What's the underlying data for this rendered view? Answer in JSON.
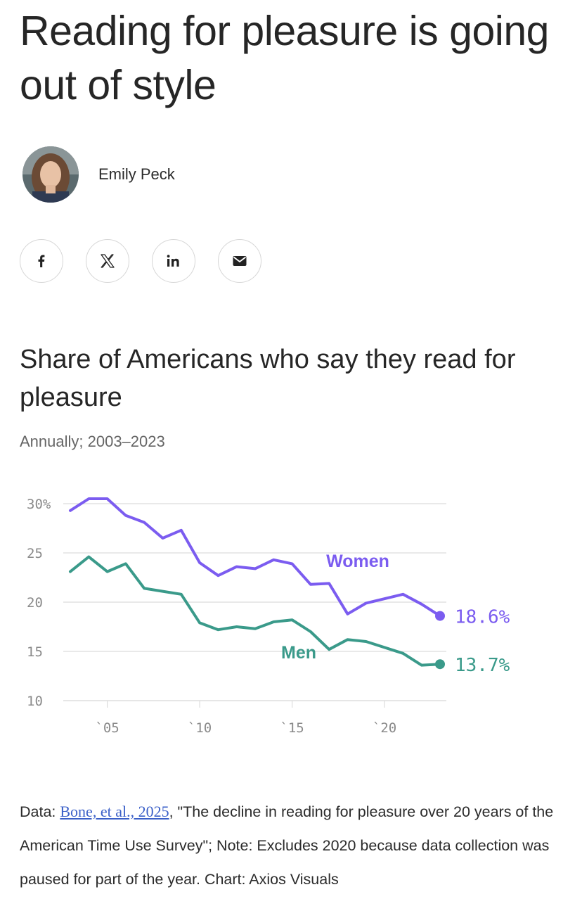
{
  "article": {
    "headline": "Reading for pleasure is going out of style",
    "author": "Emily Peck"
  },
  "share": {
    "facebook_icon": "facebook-icon",
    "x_icon": "x-icon",
    "linkedin_icon": "linkedin-icon",
    "email_icon": "email-icon"
  },
  "colors": {
    "women": "#7b5cf0",
    "men": "#3a9a8a",
    "grid": "#dcdcdc",
    "tick": "#8a8a8a"
  },
  "chart_data": {
    "type": "line",
    "title": "Share of Americans who say they read for pleasure",
    "subtitle": "Annually; 2003–2023",
    "xlabel": "",
    "ylabel": "",
    "ylim": [
      10,
      30
    ],
    "xlim": [
      2003,
      2023
    ],
    "grid": true,
    "yticks": [
      {
        "value": 30,
        "label": "30%"
      },
      {
        "value": 25,
        "label": "25"
      },
      {
        "value": 20,
        "label": "20"
      },
      {
        "value": 15,
        "label": "15"
      },
      {
        "value": 10,
        "label": "10"
      }
    ],
    "xticks": [
      {
        "value": 2005,
        "label": "`05"
      },
      {
        "value": 2010,
        "label": "`10"
      },
      {
        "value": 2015,
        "label": "`15"
      },
      {
        "value": 2020,
        "label": "`20"
      }
    ],
    "x": [
      2003,
      2004,
      2005,
      2006,
      2007,
      2008,
      2009,
      2010,
      2011,
      2012,
      2013,
      2014,
      2015,
      2016,
      2017,
      2018,
      2019,
      2021,
      2022,
      2023
    ],
    "series": [
      {
        "name": "Women",
        "values": [
          29.3,
          30.5,
          30.5,
          28.8,
          28.1,
          26.5,
          27.3,
          24.0,
          22.7,
          23.6,
          23.4,
          24.3,
          23.9,
          21.8,
          21.9,
          18.8,
          19.9,
          20.8,
          19.8,
          18.6
        ],
        "end_label": "18.6%"
      },
      {
        "name": "Men",
        "values": [
          23.1,
          24.6,
          23.1,
          23.9,
          21.4,
          21.1,
          20.8,
          17.9,
          17.2,
          17.5,
          17.3,
          18.0,
          18.2,
          17.0,
          15.2,
          16.2,
          16.0,
          14.8,
          13.6,
          13.7
        ],
        "end_label": "13.7%"
      }
    ]
  },
  "footer": {
    "data_prefix": "Data: ",
    "source_link": "Bone, et al., 2025",
    "source_rest": ", \"The decline in reading for pleasure over 20 years of the American Time Use Survey\"; Note: Excludes 2020 because data collection was paused for part of the year. Chart: Axios Visuals"
  }
}
